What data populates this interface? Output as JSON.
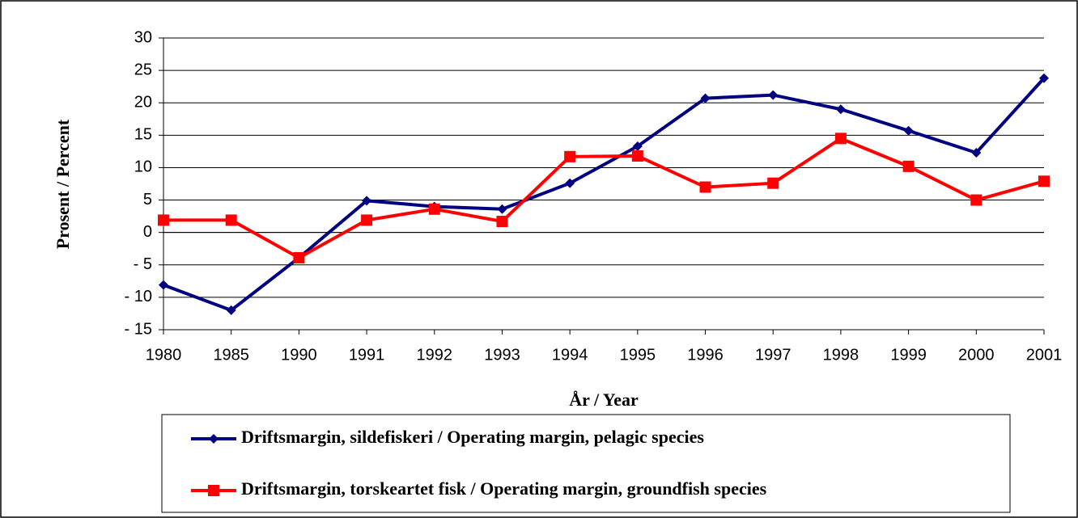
{
  "chart_data": {
    "type": "line",
    "x_title": "År / Year",
    "y_title": "Prosent / Percent",
    "categories": [
      "1980",
      "1985",
      "1990",
      "1991",
      "1992",
      "1993",
      "1994",
      "1995",
      "1996",
      "1997",
      "1998",
      "1999",
      "2000",
      "2001"
    ],
    "series": [
      {
        "name": "Driftsmargin, sildefiskeri / Operating margin, pelagic species",
        "color": "#000080",
        "marker": "diamond",
        "values": [
          -8.1,
          -12.0,
          -3.9,
          4.9,
          4.0,
          3.6,
          7.6,
          13.3,
          20.7,
          21.2,
          19.0,
          15.7,
          12.3,
          23.8
        ]
      },
      {
        "name": "Driftsmargin, torskeartet fisk / Operating margin, groundfish species",
        "color": "#ff0000",
        "marker": "square",
        "values": [
          1.9,
          1.9,
          -3.9,
          1.9,
          3.6,
          1.7,
          11.7,
          11.8,
          7.0,
          7.6,
          14.5,
          10.2,
          5.0,
          7.9
        ]
      }
    ],
    "ylim": [
      -15,
      30
    ],
    "yticks": [
      {
        "value": -15,
        "label": "- 15"
      },
      {
        "value": -10,
        "label": "- 10"
      },
      {
        "value": -5,
        "label": "- 5"
      },
      0,
      5,
      10,
      15,
      20,
      25,
      30
    ],
    "negative_tick_color": "#ff0000",
    "grid": true,
    "legend": "bottom"
  }
}
